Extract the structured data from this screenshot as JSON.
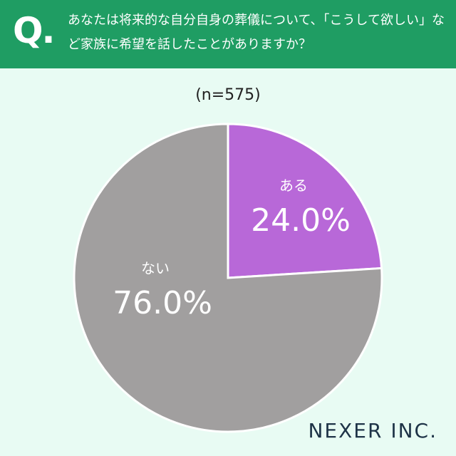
{
  "header": {
    "mark": "Q."
  },
  "brand": "NEXER INC.",
  "chart_data": {
    "type": "pie",
    "title": "あなたは将来的な自分自身の葬儀について、「こうして欲しい」など家族に希望を話したことがありますか？",
    "subtitle": "(n=575)",
    "categories": [
      "ある",
      "ない"
    ],
    "values": [
      24.0,
      76.0
    ],
    "value_labels": [
      "24.0%",
      "76.0%"
    ],
    "colors": [
      "#b868d8",
      "#a19f9f"
    ]
  }
}
